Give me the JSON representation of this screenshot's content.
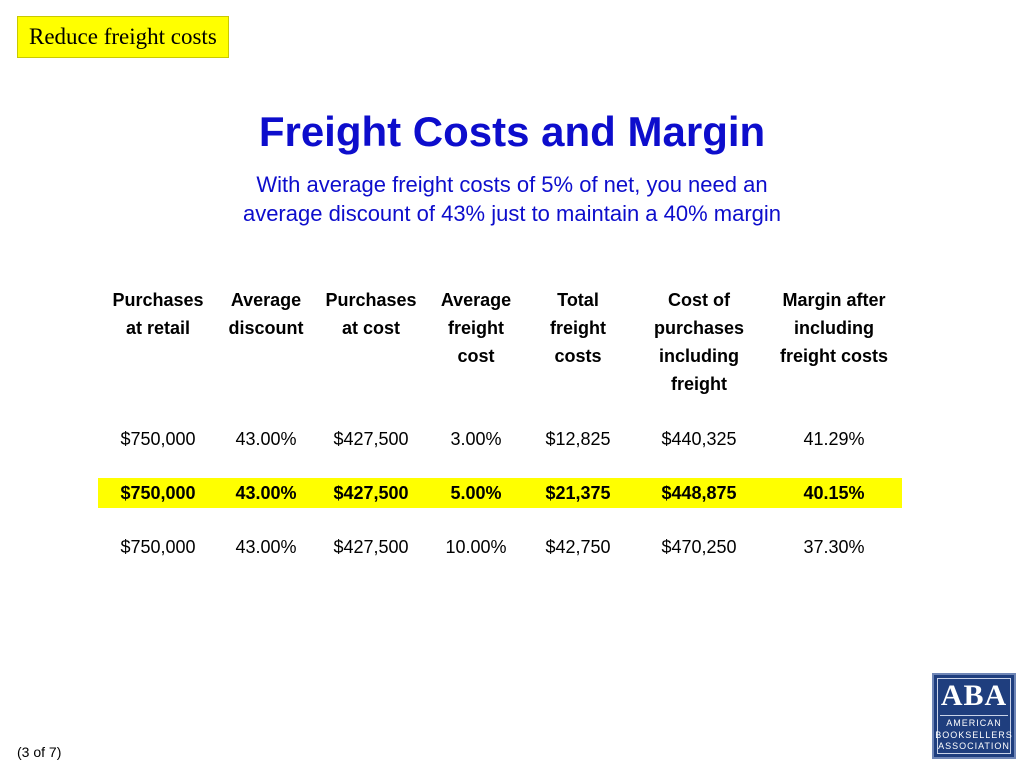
{
  "tag": "Reduce freight costs",
  "title": "Freight Costs and Margin",
  "subtitle": [
    "With average freight costs of 5% of net, you need an",
    "average discount of 43% just to maintain a 40% margin"
  ],
  "table": {
    "headers": [
      [
        "Purchases",
        "at retail"
      ],
      [
        "Average",
        "discount"
      ],
      [
        "Purchases",
        "at cost"
      ],
      [
        "Average",
        "freight",
        "cost"
      ],
      [
        "Total",
        "freight",
        "costs"
      ],
      [
        "Cost of",
        "purchases",
        "including",
        "freight"
      ],
      [
        "Margin after",
        "including",
        "freight costs"
      ]
    ],
    "rows": [
      [
        "$750,000",
        "43.00%",
        "$427,500",
        "3.00%",
        "$12,825",
        "$440,325",
        "41.29%"
      ],
      [
        "$750,000",
        "43.00%",
        "$427,500",
        "5.00%",
        "$21,375",
        "$448,875",
        "40.15%"
      ],
      [
        "$750,000",
        "43.00%",
        "$427,500",
        "10.00%",
        "$42,750",
        "$470,250",
        "37.30%"
      ]
    ],
    "highlighted_row_index": 1,
    "highlight_color": "#ffff00"
  },
  "logo": {
    "letters": "ABA",
    "lines": [
      "AMERICAN",
      "BOOKSELLERS",
      "ASSOCIATION"
    ]
  },
  "pager": "(3 of 7)",
  "colors": {
    "title": "#0d0dcc",
    "tag_background": "#ffff00",
    "logo_background": "#1f3e7e"
  }
}
